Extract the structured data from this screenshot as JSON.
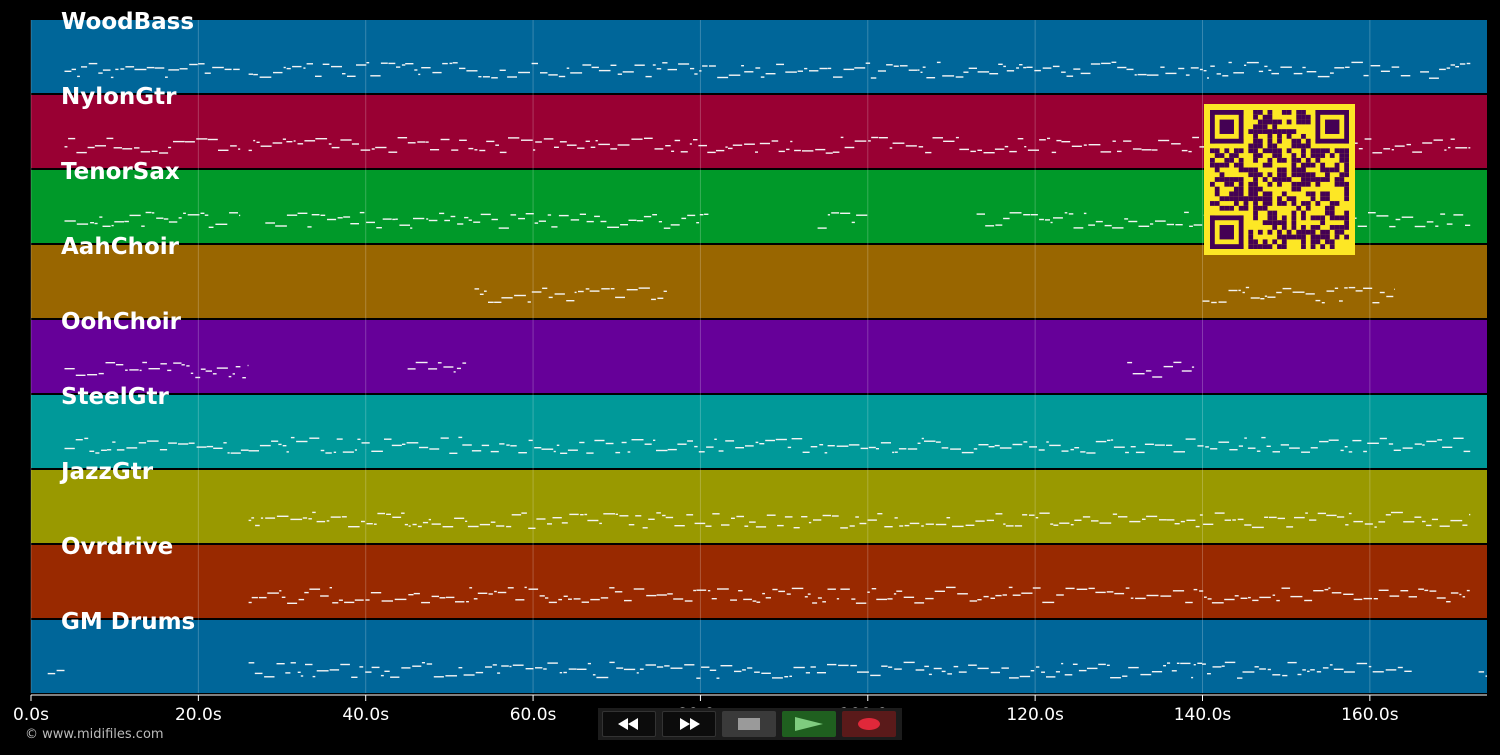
{
  "timeline": {
    "duration_s": 174,
    "ticks": [
      {
        "t": 0,
        "label": "0.0s"
      },
      {
        "t": 20,
        "label": "20.0s"
      },
      {
        "t": 40,
        "label": "40.0s"
      },
      {
        "t": 60,
        "label": "60.0s"
      },
      {
        "t": 80,
        "label": "80.0s"
      },
      {
        "t": 100,
        "label": "100.0s"
      },
      {
        "t": 120,
        "label": "120.0s"
      },
      {
        "t": 140,
        "label": "140.0s"
      },
      {
        "t": 160,
        "label": "160.0s"
      }
    ]
  },
  "tracks": [
    {
      "name": "WoodBass",
      "color": "#006699",
      "activity": [
        [
          4,
          25
        ],
        [
          26,
          165
        ],
        [
          166,
          172
        ]
      ]
    },
    {
      "name": "NylonGtr",
      "color": "#990033",
      "activity": [
        [
          4,
          25
        ],
        [
          26,
          172
        ]
      ]
    },
    {
      "name": "TenorSax",
      "color": "#009929",
      "activity": [
        [
          4,
          25
        ],
        [
          28,
          81
        ],
        [
          94,
          100
        ],
        [
          113,
          172
        ]
      ]
    },
    {
      "name": "AahChoir",
      "color": "#996600",
      "activity": [
        [
          53,
          76
        ],
        [
          140,
          163
        ]
      ]
    },
    {
      "name": "OohChoir",
      "color": "#660099",
      "activity": [
        [
          4,
          26
        ],
        [
          45,
          52
        ],
        [
          131,
          139
        ]
      ]
    },
    {
      "name": "SteelGtr",
      "color": "#009999",
      "activity": [
        [
          4,
          26
        ],
        [
          26,
          172
        ]
      ]
    },
    {
      "name": "JazzGtr",
      "color": "#999900",
      "activity": [
        [
          26,
          172
        ]
      ]
    },
    {
      "name": "Ovrdrive",
      "color": "#992900",
      "activity": [
        [
          26,
          172
        ]
      ]
    },
    {
      "name": "GM Drums",
      "color": "#006699",
      "activity": [
        [
          2,
          4
        ],
        [
          26,
          165
        ],
        [
          173,
          174
        ]
      ]
    }
  ],
  "copyright": "© www.midifiles.com",
  "transport": {
    "buttons": [
      {
        "name": "rewind",
        "icon": "rewind-icon"
      },
      {
        "name": "fast-forward",
        "icon": "fast-forward-icon"
      },
      {
        "name": "stop",
        "icon": "stop-icon"
      },
      {
        "name": "play",
        "icon": "play-icon"
      },
      {
        "name": "record",
        "icon": "record-icon"
      }
    ]
  },
  "qr_code": {
    "color": "#fde725",
    "ink": "#440154"
  }
}
